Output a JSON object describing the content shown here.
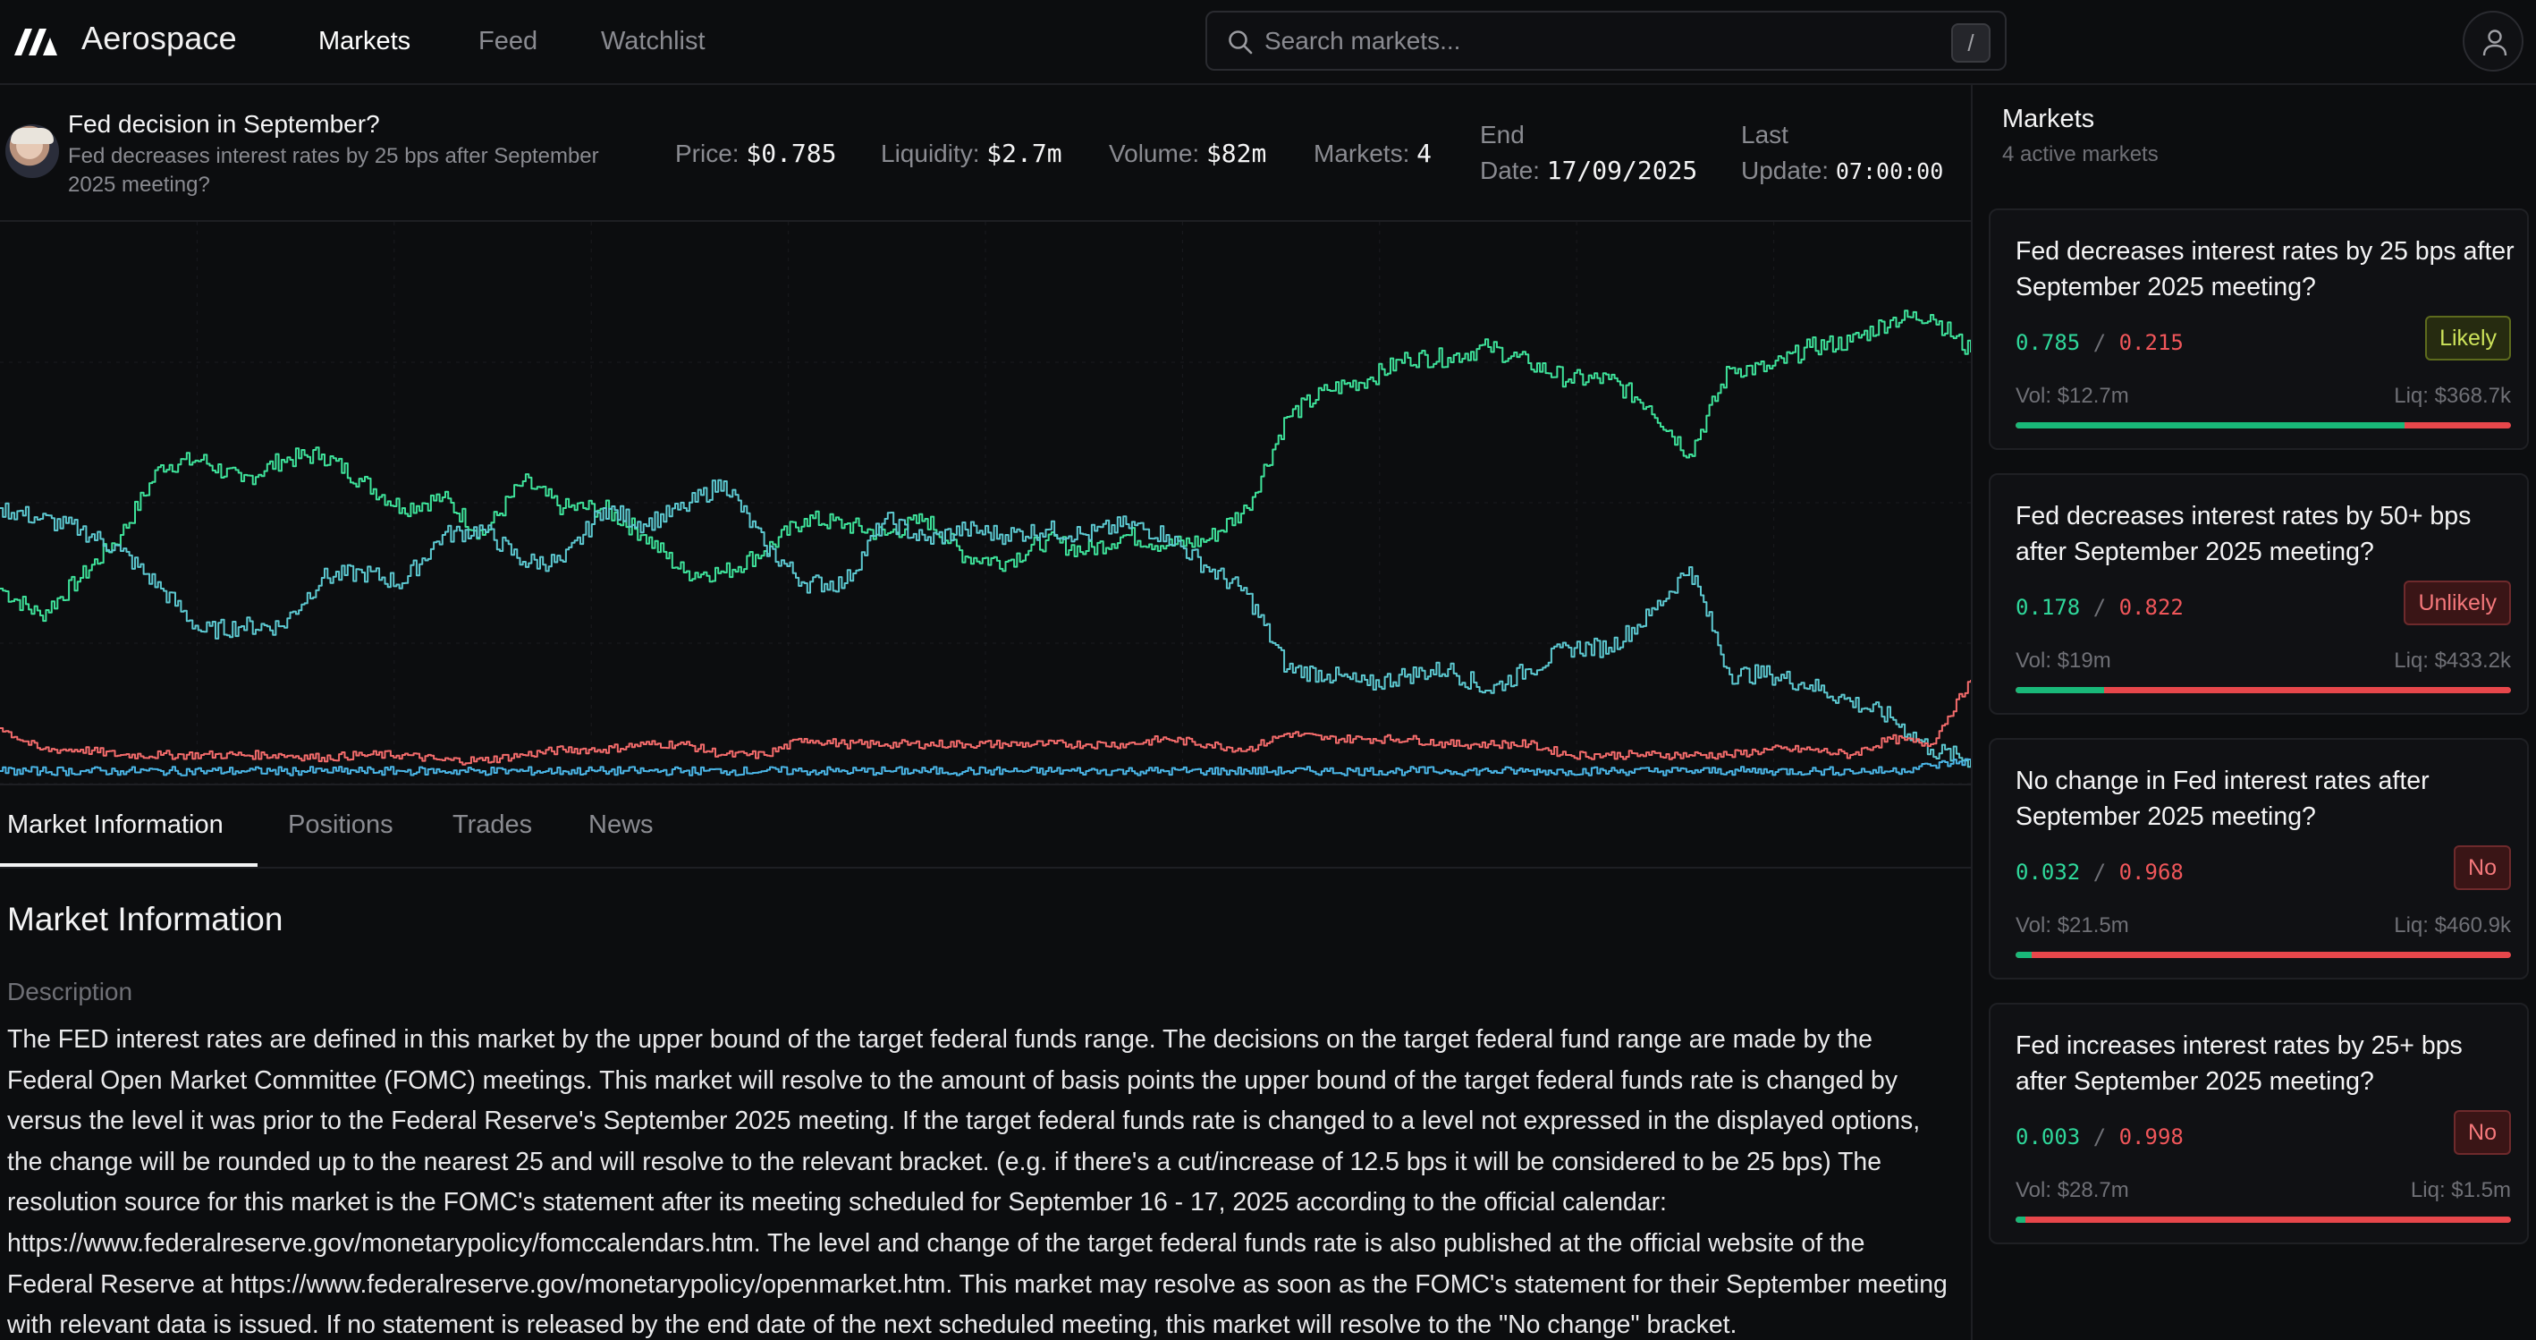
{
  "app": {
    "brand": "Aerospace"
  },
  "nav": {
    "items": [
      {
        "label": "Markets"
      },
      {
        "label": "Feed"
      },
      {
        "label": "Watchlist"
      }
    ]
  },
  "search": {
    "placeholder": "Search markets...",
    "shortcut": "/"
  },
  "market": {
    "title": "Fed decision in September?",
    "subtitle": "Fed decreases interest rates by 25 bps after September 2025 meeting?",
    "price_label": "Price:",
    "price": "$0.785",
    "liquidity_label": "Liquidity:",
    "liquidity": "$2.7m",
    "volume_label": "Volume:",
    "volume": "$82m",
    "markets_label": "Markets:",
    "markets": "4",
    "end_label_1": "End",
    "end_label_2": "Date:",
    "end_date": "17/09/2025",
    "update_label_1": "Last",
    "update_label_2": "Update:",
    "last_update": "07:00:00"
  },
  "chart_data": {
    "type": "line",
    "title": "",
    "xlabel": "",
    "ylabel": "",
    "ylim": [
      0,
      1
    ],
    "grid": true,
    "series": [
      {
        "color": "#3ee29a",
        "values": [
          0.35,
          0.3,
          0.37,
          0.45,
          0.58,
          0.59,
          0.55,
          0.59,
          0.6,
          0.55,
          0.5,
          0.52,
          0.45,
          0.55,
          0.5,
          0.5,
          0.45,
          0.38,
          0.38,
          0.42,
          0.48,
          0.47,
          0.45,
          0.48,
          0.41,
          0.4,
          0.44,
          0.42,
          0.45,
          0.43,
          0.44,
          0.5,
          0.67,
          0.72,
          0.74,
          0.78,
          0.78,
          0.8,
          0.77,
          0.74,
          0.74,
          0.69,
          0.6,
          0.76,
          0.76,
          0.8,
          0.81,
          0.85,
          0.86,
          0.79
        ]
      },
      {
        "color": "#5cc8d0",
        "values": [
          0.5,
          0.48,
          0.46,
          0.42,
          0.35,
          0.27,
          0.28,
          0.28,
          0.37,
          0.38,
          0.36,
          0.45,
          0.46,
          0.4,
          0.4,
          0.5,
          0.47,
          0.5,
          0.55,
          0.43,
          0.36,
          0.36,
          0.48,
          0.44,
          0.46,
          0.45,
          0.46,
          0.45,
          0.47,
          0.45,
          0.39,
          0.34,
          0.2,
          0.19,
          0.17,
          0.19,
          0.2,
          0.16,
          0.2,
          0.24,
          0.24,
          0.3,
          0.39,
          0.19,
          0.19,
          0.17,
          0.14,
          0.11,
          0.05,
          0.03
        ]
      },
      {
        "color": "#f36b6b",
        "values": [
          0.09,
          0.05,
          0.05,
          0.04,
          0.04,
          0.04,
          0.04,
          0.04,
          0.035,
          0.04,
          0.04,
          0.03,
          0.03,
          0.04,
          0.05,
          0.05,
          0.06,
          0.06,
          0.04,
          0.04,
          0.07,
          0.06,
          0.06,
          0.06,
          0.06,
          0.06,
          0.06,
          0.06,
          0.06,
          0.07,
          0.06,
          0.05,
          0.08,
          0.07,
          0.07,
          0.07,
          0.06,
          0.06,
          0.06,
          0.04,
          0.04,
          0.04,
          0.04,
          0.04,
          0.05,
          0.05,
          0.04,
          0.07,
          0.06,
          0.18
        ]
      },
      {
        "color": "#4ab5e6",
        "values": [
          0.01,
          0.01,
          0.01,
          0.01,
          0.01,
          0.01,
          0.01,
          0.01,
          0.01,
          0.01,
          0.01,
          0.01,
          0.01,
          0.01,
          0.01,
          0.01,
          0.01,
          0.01,
          0.01,
          0.01,
          0.01,
          0.01,
          0.01,
          0.01,
          0.01,
          0.01,
          0.01,
          0.01,
          0.01,
          0.01,
          0.01,
          0.01,
          0.01,
          0.01,
          0.01,
          0.01,
          0.01,
          0.01,
          0.01,
          0.01,
          0.01,
          0.01,
          0.01,
          0.01,
          0.01,
          0.01,
          0.01,
          0.01,
          0.02,
          0.03
        ]
      }
    ]
  },
  "tabs": [
    {
      "label": "Market Information"
    },
    {
      "label": "Positions"
    },
    {
      "label": "Trades"
    },
    {
      "label": "News"
    }
  ],
  "info": {
    "heading": "Market Information",
    "description_label": "Description",
    "description": "The FED interest rates are defined in this market by the upper bound of the target federal funds range. The decisions on the target federal fund range are made by the Federal Open Market Committee (FOMC) meetings. This market will resolve to the amount of basis points the upper bound of the target federal funds rate is changed by versus the level it was prior to the Federal Reserve's September 2025 meeting. If the target federal funds rate is changed to a level not expressed in the displayed options, the change will be rounded up to the nearest 25 and will resolve to the relevant bracket. (e.g. if there's a cut/increase of 12.5 bps it will be considered to be 25 bps) The resolution source for this market is the FOMC's statement after its meeting scheduled for September 16 - 17, 2025 according to the official calendar: https://www.federalreserve.gov/monetarypolicy/fomccalendars.htm. The level and change of the target federal funds rate is also published at the official website of the Federal Reserve at https://www.federalreserve.gov/monetarypolicy/openmarket.htm. This market may resolve as soon as the FOMC's statement for their September meeting with relevant data is issued. If no statement is released by the end date of the next scheduled meeting, this market will resolve to the \"No change\" bracket."
  },
  "sidebar": {
    "title": "Markets",
    "subtitle": "4 active markets",
    "separator": "/",
    "cards": [
      {
        "question": "Fed decreases interest rates by 25 bps after September 2025 meeting?",
        "yes": "0.785",
        "no": "0.215",
        "badge": "Likely",
        "badge_type": "likely",
        "vol": "Vol: $12.7m",
        "liq": "Liq: $368.7k",
        "yes_share": 0.785
      },
      {
        "question": "Fed decreases interest rates by 50+ bps after September 2025 meeting?",
        "yes": "0.178",
        "no": "0.822",
        "badge": "Unlikely",
        "badge_type": "unlikely",
        "vol": "Vol: $19m",
        "liq": "Liq: $433.2k",
        "yes_share": 0.178
      },
      {
        "question": "No change in Fed interest rates after September 2025 meeting?",
        "yes": "0.032",
        "no": "0.968",
        "badge": "No",
        "badge_type": "nob",
        "vol": "Vol: $21.5m",
        "liq": "Liq: $460.9k",
        "yes_share": 0.032
      },
      {
        "question": "Fed increases interest rates by 25+ bps after September 2025 meeting?",
        "yes": "0.003",
        "no": "0.998",
        "badge": "No",
        "badge_type": "nob",
        "vol": "Vol: $28.7m",
        "liq": "Liq: $1.5m",
        "yes_share": 0.003
      }
    ]
  }
}
